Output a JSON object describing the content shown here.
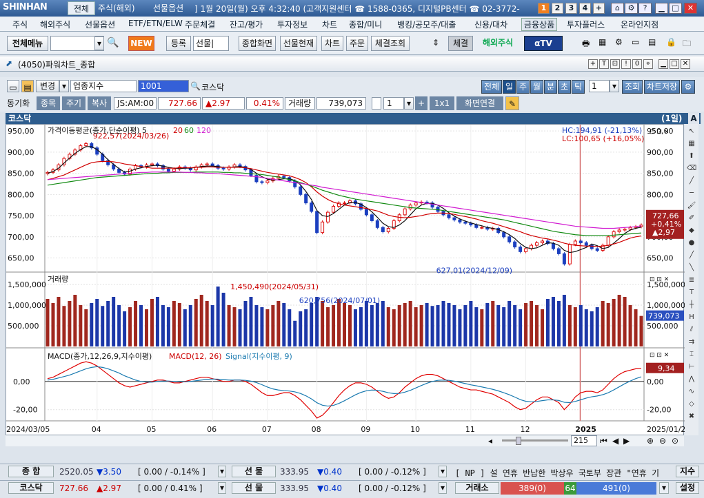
{
  "app": {
    "logo": "SHINHAN",
    "main_tab": "전체",
    "tabs": [
      "주식(해외)",
      "선물옵션"
    ],
    "info": "] 1월 20일(월) 오후 4:32:40 (고객지원센터 ☎ 1588-0365, 디지털PB센터 ☎ 02-3772-",
    "screens": [
      "1",
      "2",
      "3",
      "4",
      "+"
    ]
  },
  "menu": [
    "주식",
    "해외주식",
    "선물옵션",
    "ETF/ETN/ELW",
    "주문체결",
    "잔고/평가",
    "투자정보",
    "차트",
    "종합/미니",
    "뱅킹/공모주/대출",
    "신용/대차",
    "금융상품",
    "투자플러스",
    "온라인지점"
  ],
  "toolbar": {
    "all_menu": "전체메뉴",
    "new_badge": "NEW",
    "register": "등록",
    "futures_combo": "선물|",
    "combined": "종합화면",
    "futures_now": "선물현재",
    "chart": "차트",
    "order": "주문",
    "fill": "체결조회",
    "fill2": "체결",
    "overseas": "해외주식",
    "tv": "αTV"
  },
  "window": {
    "title": "(4050)파워차트_종합"
  },
  "controls": {
    "change": "변경",
    "category": "업종지수",
    "code": "1001",
    "name": "코스닥",
    "periods": [
      "전체",
      "일",
      "주",
      "월",
      "분",
      "초",
      "틱"
    ],
    "active_period": "일",
    "count": "1",
    "query": "조회",
    "save": "차트저장"
  },
  "quote": {
    "sync": "동기화",
    "buttons": [
      "종목",
      "주기",
      "복사"
    ],
    "time": "JS:AM:00",
    "price": "727.66",
    "change": "▲2.97",
    "pct": "0.41%",
    "vol_label": "거래량",
    "volume": "739,073",
    "one": "1",
    "layout": "1x1",
    "link": "화면연결"
  },
  "panel": {
    "title": "코스닥",
    "period": "(1일)"
  },
  "legends": {
    "price": "가격이동평균(종가,단순이평) 5",
    "p20": "20",
    "p60": "60",
    "p120": "120",
    "hc": "HC:194,91 (-21,13%)",
    "lc": "LC:100,65 (+16,05%)",
    "volume": "거래량",
    "macd": "MACD(종가,12,26,9,지수이평)",
    "macd2": "MACD(12, 26)",
    "signal": "Signal(지수이평, 9)"
  },
  "annotations": {
    "high": "922,57(2024/03/26)",
    "low": "627,01(2024/12/09)",
    "vmax": "1,450,490(2024/05/31)",
    "vmark": "620,756(2024/07/01)"
  },
  "badges": {
    "price": "727,66",
    "pct": "+0,41%",
    "chg": "▲2,97",
    "vol": "739,073",
    "macd": "9,34"
  },
  "xlabels": [
    "2024/03/05",
    "04",
    "05",
    "06",
    "07",
    "08",
    "09",
    "10",
    "11",
    "12",
    "2025",
    "2025/01/20"
  ],
  "price_ticks": [
    "950,00",
    "900,00",
    "850,00",
    "800,00",
    "750,00",
    "700,00",
    "650,00"
  ],
  "vol_ticks": [
    "1,500,000",
    "1,000,000",
    "500,000"
  ],
  "macd_ticks": [
    "0,00",
    "-20,00"
  ],
  "zoom": "215",
  "status": [
    {
      "label": "종 합",
      "value": "2520.05",
      "change": "▼3.50",
      "pct": "[ 0.00 / -0.14% ]",
      "label2": "선 물",
      "v2": "333.95",
      "c2": "▼0.40",
      "p2": "[ 0.00 / -0.12% ]",
      "news": "[ NP ] 설 연휴 반납한 박상우 국토부 장관 \"연휴 기",
      "btn": "지수"
    },
    {
      "label": "코스닥",
      "value": "727.66",
      "change": "▲2.97",
      "pct": "[ 0.00 / 0.41% ]",
      "label2": "선 물",
      "v2": "333.95",
      "c2": "▼0.40",
      "p2": "[ 0.00 / -0.12% ]",
      "exch": "거래소",
      "red": "389(0)",
      "green": "64",
      "blue": "491(0)",
      "btn": "설정"
    }
  ],
  "chart_data": {
    "type": "candlestick",
    "x_range": [
      "2024/03/05",
      "2025/01/20"
    ],
    "price": {
      "ylim": [
        620,
        955
      ],
      "high": 922.57,
      "low": 627.01,
      "last": 727.66,
      "close": [
        852,
        858,
        870,
        885,
        895,
        905,
        915,
        920,
        910,
        895,
        880,
        870,
        860,
        852,
        848,
        860,
        868,
        865,
        870,
        872,
        868,
        860,
        855,
        860,
        865,
        862,
        858,
        865,
        870,
        872,
        868,
        862,
        860,
        865,
        870,
        866,
        858,
        845,
        830,
        828,
        832,
        838,
        843,
        840,
        832,
        818,
        800,
        780,
        760,
        710,
        735,
        758,
        772,
        780,
        780,
        785,
        778,
        765,
        752,
        738,
        722,
        712,
        720,
        738,
        752,
        766,
        775,
        780,
        782,
        780,
        770,
        760,
        752,
        745,
        740,
        735,
        732,
        728,
        722,
        722,
        718,
        720,
        710,
        700,
        688,
        676,
        665,
        672,
        680,
        686,
        690,
        684,
        672,
        660,
        636,
        682,
        690,
        686,
        680,
        672,
        668,
        680,
        700,
        712,
        716,
        718,
        722,
        724,
        727.66
      ],
      "ma5": [
        850,
        854,
        862,
        874,
        886,
        897,
        906,
        913,
        913,
        906,
        895,
        882,
        871,
        861,
        853,
        855,
        860,
        863,
        866,
        868,
        869,
        867,
        864,
        862,
        861,
        862,
        862,
        864,
        866,
        867,
        867,
        866,
        864,
        864,
        865,
        866,
        864,
        859,
        850,
        842,
        836,
        834,
        835,
        837,
        837,
        833,
        823,
        807,
        788,
        762,
        750,
        748,
        755,
        765,
        775,
        781,
        781,
        777,
        769,
        759,
        746,
        732,
        724,
        722,
        728,
        738,
        752,
        766,
        775,
        779,
        779,
        775,
        767,
        757,
        749,
        742,
        737,
        733,
        729,
        726,
        722,
        720,
        717,
        712,
        705,
        696,
        684,
        675,
        672,
        674,
        680,
        686,
        685,
        680,
        668,
        663,
        665,
        670,
        675,
        683,
        679,
        672,
        675,
        685,
        696,
        708,
        716,
        720,
        723
      ],
      "ma20": [
        835,
        838,
        842,
        846,
        852,
        858,
        864,
        870,
        875,
        877,
        878,
        878,
        877,
        875,
        872,
        870,
        868,
        866,
        864,
        862,
        862,
        862,
        862,
        862,
        863,
        863,
        863,
        864,
        864,
        865,
        865,
        864,
        864,
        864,
        864,
        864,
        863,
        861,
        858,
        855,
        852,
        850,
        848,
        846,
        844,
        840,
        835,
        828,
        818,
        806,
        796,
        788,
        782,
        778,
        775,
        773,
        771,
        769,
        767,
        764,
        761,
        756,
        751,
        748,
        746,
        745,
        746,
        748,
        750,
        753,
        755,
        756,
        756,
        755,
        753,
        750,
        748,
        745,
        742,
        738,
        735,
        732,
        728,
        724,
        720,
        716,
        712,
        707,
        703,
        700,
        697,
        695,
        692,
        689,
        685,
        682,
        680,
        679,
        678,
        678,
        677,
        678,
        680,
        683,
        687,
        692,
        697,
        700,
        702
      ],
      "ma60": [
        822,
        824,
        826,
        828,
        830,
        832,
        834,
        836,
        838,
        840,
        841,
        842,
        843,
        844,
        845,
        846,
        847,
        848,
        849,
        850,
        850,
        851,
        851,
        852,
        852,
        852,
        852,
        853,
        853,
        853,
        853,
        853,
        852,
        852,
        851,
        851,
        850,
        849,
        848,
        847,
        845,
        843,
        841,
        838,
        835,
        832,
        828,
        824,
        820,
        815,
        810,
        806,
        802,
        798,
        795,
        792,
        789,
        787,
        785,
        783,
        781,
        779,
        777,
        775,
        773,
        771,
        769,
        768,
        767,
        766,
        765,
        764,
        762,
        760,
        758,
        756,
        754,
        752,
        750,
        748,
        746,
        744,
        742,
        740,
        737,
        734,
        731,
        728,
        725,
        722,
        719,
        716,
        713,
        711,
        709,
        707,
        705,
        704,
        703,
        703,
        703,
        703,
        703,
        704,
        705,
        706,
        707,
        708,
        709
      ],
      "ma120": [
        835,
        836,
        837,
        838,
        839,
        840,
        841,
        842,
        843,
        844,
        845,
        846,
        847,
        848,
        849,
        850,
        851,
        852,
        852,
        853,
        853,
        853,
        853,
        853,
        853,
        852,
        852,
        851,
        851,
        850,
        850,
        849,
        848,
        847,
        846,
        845,
        844,
        843,
        842,
        840,
        838,
        836,
        834,
        832,
        830,
        828,
        826,
        824,
        822,
        820,
        817,
        815,
        813,
        811,
        809,
        807,
        805,
        803,
        801,
        799,
        797,
        795,
        793,
        791,
        789,
        787,
        785,
        783,
        781,
        779,
        777,
        775,
        773,
        771,
        769,
        767,
        765,
        763,
        761,
        759,
        757,
        755,
        753,
        751,
        749,
        747,
        745,
        743,
        741,
        739,
        737,
        735,
        733,
        731,
        729,
        727,
        725,
        724,
        723,
        722,
        721,
        720,
        720,
        720,
        721,
        722,
        723,
        724,
        726
      ]
    },
    "volume": {
      "ylim": [
        0,
        1600000
      ],
      "max": 1450490,
      "last": 739073,
      "values": [
        1150000,
        1050000,
        1200000,
        980000,
        1100000,
        1250000,
        1000000,
        900000,
        1050000,
        1150000,
        980000,
        1100000,
        1200000,
        1000000,
        850000,
        950000,
        1100000,
        1000000,
        900000,
        1150000,
        1200000,
        1000000,
        950000,
        1100000,
        1050000,
        900000,
        1000000,
        1150000,
        1250000,
        1100000,
        1000000,
        1450490,
        1300000,
        1000000,
        950000,
        900000,
        1100000,
        1200000,
        1000000,
        950000,
        900000,
        1000000,
        1100000,
        1050000,
        900000,
        620756,
        850000,
        900000,
        1050000,
        1200000,
        1100000,
        950000,
        1000000,
        1150000,
        1050000,
        1000000,
        900000,
        950000,
        1100000,
        1000000,
        1050000,
        1100000,
        950000,
        900000,
        1000000,
        1050000,
        1100000,
        950000,
        1000000,
        1050000,
        980000,
        1000000,
        1100000,
        1050000,
        1000000,
        900000,
        1000000,
        1100000,
        950000,
        900000,
        1050000,
        1100000,
        1000000,
        950000,
        1100000,
        1000000,
        900000,
        1050000,
        1100000,
        1000000,
        900000,
        1150000,
        1200000,
        1100000,
        1250000,
        1000000,
        950000,
        1000000,
        900000,
        850000,
        950000,
        1100000,
        1050000,
        1150000,
        1250000,
        1200000,
        1000000,
        900000,
        739073
      ]
    },
    "macd": {
      "ylim": [
        -27,
        18
      ],
      "last": 9.34,
      "macd": [
        2,
        3,
        5,
        7,
        9,
        11,
        13,
        14,
        13,
        11,
        8,
        5,
        2,
        -1,
        -3,
        -4,
        -3,
        -2,
        -1,
        0,
        1,
        1,
        0,
        -1,
        -1,
        0,
        1,
        2,
        3,
        3,
        2,
        1,
        0,
        0,
        1,
        1,
        0,
        -2,
        -5,
        -8,
        -10,
        -10,
        -9,
        -8,
        -8,
        -10,
        -13,
        -17,
        -21,
        -26,
        -24,
        -20,
        -15,
        -10,
        -6,
        -3,
        -1,
        -1,
        -2,
        -4,
        -7,
        -10,
        -12,
        -11,
        -8,
        -4,
        -1,
        2,
        4,
        5,
        5,
        4,
        2,
        0,
        -2,
        -4,
        -5,
        -6,
        -6,
        -7,
        -8,
        -9,
        -11,
        -13,
        -15,
        -18,
        -20,
        -19,
        -16,
        -13,
        -11,
        -11,
        -13,
        -15,
        -20,
        -16,
        -11,
        -8,
        -7,
        -7,
        -8,
        -6,
        -2,
        2,
        5,
        7,
        8,
        9,
        9.34
      ],
      "signal": [
        1,
        1.5,
        2.5,
        3.5,
        4.5,
        6,
        7.5,
        9,
        10,
        10.5,
        10,
        9,
        7.5,
        6,
        4,
        2.5,
        1,
        0,
        -0.5,
        -0.5,
        0,
        0.3,
        0.3,
        0,
        -0.3,
        -0.3,
        0,
        0.5,
        1,
        1.5,
        1.7,
        1.6,
        1.3,
        1,
        1,
        1,
        0.8,
        0.2,
        -0.8,
        -2.3,
        -4,
        -5.3,
        -6.1,
        -6.5,
        -6.8,
        -7.4,
        -8.5,
        -10.2,
        -12.4,
        -15.1,
        -16.9,
        -17.5,
        -17,
        -15.6,
        -13.7,
        -11.6,
        -9.5,
        -7.8,
        -6.6,
        -6.1,
        -6.3,
        -7,
        -8,
        -8.6,
        -8.5,
        -7.6,
        -6.3,
        -4.6,
        -2.9,
        -1.3,
        0,
        0.8,
        1,
        0.8,
        0.2,
        -0.6,
        -1.5,
        -2.4,
        -3.1,
        -3.9,
        -4.7,
        -5.6,
        -6.7,
        -8,
        -9.4,
        -11.1,
        -12.9,
        -14.1,
        -14.5,
        -14.2,
        -13.6,
        -13.1,
        -13.1,
        -13.5,
        -14.8,
        -15,
        -14.2,
        -13,
        -11.8,
        -10.9,
        -10.3,
        -9.4,
        -8,
        -6,
        -3.8,
        -1.6,
        0.3,
        2,
        3.3
      ]
    }
  }
}
